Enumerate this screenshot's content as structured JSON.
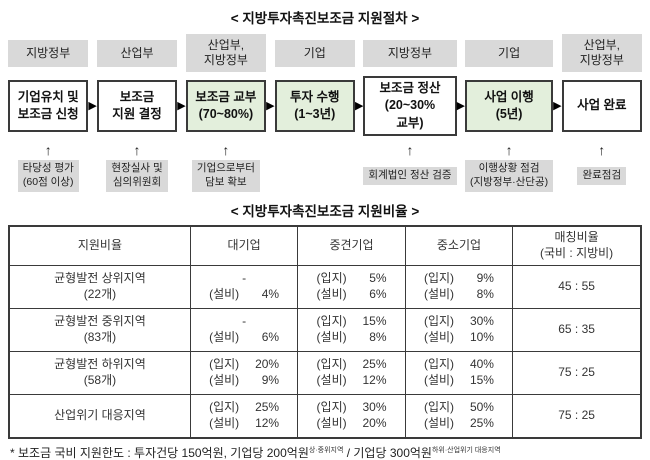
{
  "process": {
    "title": "< 지방투자촉진보조금 지원절차 >",
    "arrow_icon": "▶",
    "up_arrow_icon": "↑",
    "columns": [
      {
        "actor": [
          "지방정부"
        ],
        "step": [
          "기업유치 및",
          "보조금 신청"
        ],
        "green": false,
        "note": [
          "타당성 평가",
          "(60점 이상)"
        ]
      },
      {
        "actor": [
          "산업부"
        ],
        "step": [
          "보조금",
          "지원 결정"
        ],
        "green": false,
        "note": [
          "현장실사 및",
          "심의위원회"
        ]
      },
      {
        "actor": [
          "산업부,",
          "지방정부"
        ],
        "step": [
          "보조금 교부",
          "(70~80%)"
        ],
        "green": true,
        "note": [
          "기업으로부터",
          "담보 확보"
        ]
      },
      {
        "actor": [
          "기업"
        ],
        "step": [
          "투자 수행",
          "(1~3년)"
        ],
        "green": true,
        "note": null
      },
      {
        "actor": [
          "지방정부"
        ],
        "step": [
          "보조금 정산",
          "(20~30%",
          "교부)"
        ],
        "green": false,
        "note": [
          "회계법인 정산 검증"
        ]
      },
      {
        "actor": [
          "기업"
        ],
        "step": [
          "사업 이행",
          "(5년)"
        ],
        "green": true,
        "note": [
          "이행상황 점검",
          "(지방정부·산단공)"
        ]
      },
      {
        "actor": [
          "산업부,",
          "지방정부"
        ],
        "step": [
          "사업 완료"
        ],
        "green": false,
        "note": [
          "완료점검"
        ]
      }
    ]
  },
  "ratio": {
    "title": "< 지방투자촉진보조금 지원비율 >",
    "headers": [
      [
        "지원비율"
      ],
      [
        "대기업"
      ],
      [
        "중견기업"
      ],
      [
        "중소기업"
      ],
      [
        "매칭비율",
        "(국비 : 지방비)"
      ]
    ],
    "rows": [
      {
        "region": [
          "균형발전 상위지역",
          "(22개)"
        ],
        "large": [
          {
            "label": "-",
            "value": ""
          },
          {
            "label": "(설비)",
            "value": "4%"
          }
        ],
        "medium": [
          {
            "label": "(입지)",
            "value": "5%"
          },
          {
            "label": "(설비)",
            "value": "6%"
          }
        ],
        "small": [
          {
            "label": "(입지)",
            "value": "9%"
          },
          {
            "label": "(설비)",
            "value": "8%"
          }
        ],
        "matching": "45 : 55"
      },
      {
        "region": [
          "균형발전 중위지역",
          "(83개)"
        ],
        "large": [
          {
            "label": "-",
            "value": ""
          },
          {
            "label": "(설비)",
            "value": "6%"
          }
        ],
        "medium": [
          {
            "label": "(입지)",
            "value": "15%"
          },
          {
            "label": "(설비)",
            "value": "8%"
          }
        ],
        "small": [
          {
            "label": "(입지)",
            "value": "30%"
          },
          {
            "label": "(설비)",
            "value": "10%"
          }
        ],
        "matching": "65 : 35"
      },
      {
        "region": [
          "균형발전 하위지역",
          "(58개)"
        ],
        "large": [
          {
            "label": "(입지)",
            "value": "20%"
          },
          {
            "label": "(설비)",
            "value": "9%"
          }
        ],
        "medium": [
          {
            "label": "(입지)",
            "value": "25%"
          },
          {
            "label": "(설비)",
            "value": "12%"
          }
        ],
        "small": [
          {
            "label": "(입지)",
            "value": "40%"
          },
          {
            "label": "(설비)",
            "value": "15%"
          }
        ],
        "matching": "75 : 25"
      },
      {
        "region": [
          "산업위기 대응지역"
        ],
        "large": [
          {
            "label": "(입지)",
            "value": "25%"
          },
          {
            "label": "(설비)",
            "value": "12%"
          }
        ],
        "medium": [
          {
            "label": "(입지)",
            "value": "30%"
          },
          {
            "label": "(설비)",
            "value": "20%"
          }
        ],
        "small": [
          {
            "label": "(입지)",
            "value": "50%"
          },
          {
            "label": "(설비)",
            "value": "25%"
          }
        ],
        "matching": "75 : 25"
      }
    ]
  },
  "footnote": {
    "parts": [
      {
        "text": "* 보조금 국비 지원한도 : 투자건당 150억원, 기업당 200억원"
      },
      {
        "sup": "상·중위지역"
      },
      {
        "text": " / 기업당 300억원"
      },
      {
        "sup": "하위·산업위기 대응지역"
      }
    ]
  },
  "colors": {
    "actor_box_bg": "#d9d9d9",
    "note_box_bg": "#d9d9d9",
    "green_step_bg": "#e3efdc",
    "white_step_bg": "#ffffff",
    "box_border": "#3a3a3a",
    "table_border": "#3a3a3a"
  }
}
